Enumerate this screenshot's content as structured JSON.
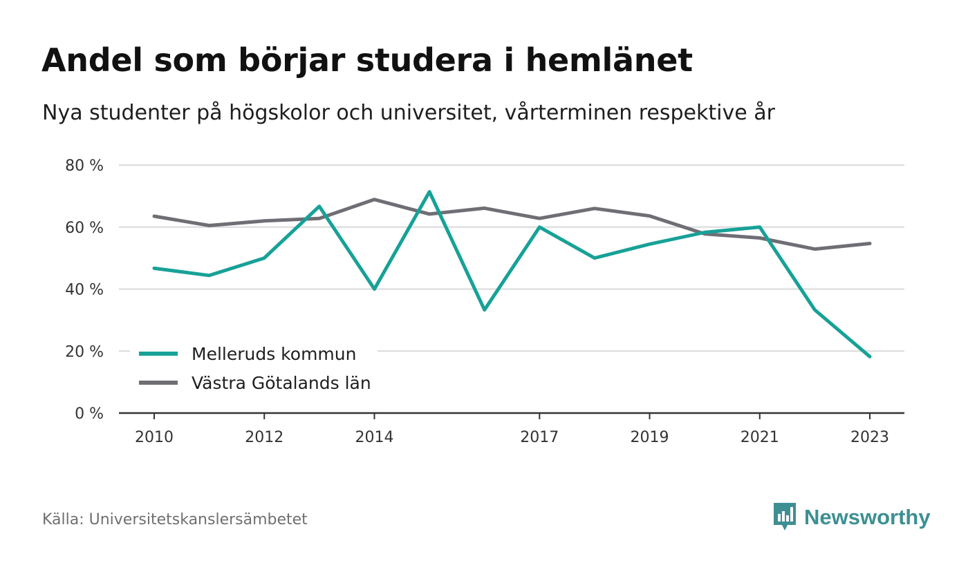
{
  "header": {
    "title": "Andel som börjar studera i hemlänet",
    "subtitle": "Nya studenter på högskolor och universitet, vårterminen respektive år"
  },
  "footer": {
    "source": "Källa: Universitetskanslersämbetet",
    "logo_text": "Newsworthy"
  },
  "colors": {
    "series_1": "#17a197",
    "series_2": "#6f6e75",
    "grid": "#d9d9d9",
    "axis": "#333333",
    "logo": "#3d8f92"
  },
  "chart_data": {
    "type": "line",
    "x": [
      2010,
      2011,
      2012,
      2013,
      2014,
      2015,
      2016,
      2017,
      2018,
      2019,
      2020,
      2021,
      2022,
      2023
    ],
    "x_tick_labels": [
      "2010",
      "2012",
      "2014",
      "2017",
      "2019",
      "2021",
      "2023"
    ],
    "y_tick_labels": [
      "0 %",
      "20 %",
      "40 %",
      "60 %",
      "80 %"
    ],
    "y_ticks": [
      0,
      20,
      40,
      60,
      80
    ],
    "ylim": [
      0,
      80
    ],
    "grid": true,
    "legend_position": "bottom-left",
    "series": [
      {
        "name": "Melleruds kommun",
        "values": [
          46.7,
          44.4,
          50.0,
          66.7,
          40.0,
          71.4,
          33.3,
          60.0,
          50.0,
          54.5,
          58.3,
          60.0,
          33.3,
          18.2
        ]
      },
      {
        "name": "Västra Götalands län",
        "values": [
          63.5,
          60.5,
          62.0,
          62.8,
          68.9,
          64.2,
          66.1,
          62.8,
          66.0,
          63.6,
          57.8,
          56.5,
          52.9,
          54.7
        ]
      }
    ]
  }
}
